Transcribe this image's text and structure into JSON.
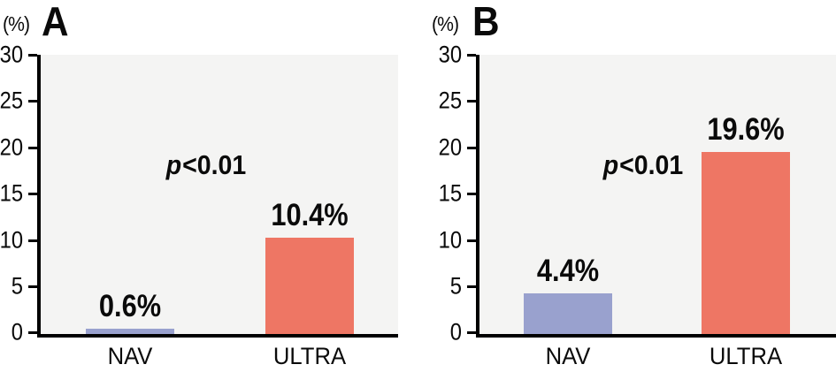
{
  "colors": {
    "nav_bar": "#99a1ce",
    "ultra_bar": "#ee7664",
    "plot_bg": "#f4f4f3",
    "axis": "#000000",
    "text": "#0a0a0a"
  },
  "chart_data": [
    {
      "type": "bar",
      "panel_label": "A",
      "y_axis_unit": "(%)",
      "categories": [
        "NAV",
        "ULTRA"
      ],
      "values": [
        0.6,
        10.4
      ],
      "value_labels": [
        "0.6%",
        "10.4%"
      ],
      "annotation": "p<0.01",
      "annotation_italic": "p",
      "annotation_rest": "<0.01",
      "ylim": [
        0,
        30
      ],
      "ytick_labels": [
        "30",
        "25",
        "20",
        "15",
        "10",
        "5",
        "0"
      ],
      "grid": false,
      "legend": "none",
      "bar_colors": [
        "#99a1ce",
        "#ee7664"
      ]
    },
    {
      "type": "bar",
      "panel_label": "B",
      "y_axis_unit": "(%)",
      "categories": [
        "NAV",
        "ULTRA"
      ],
      "values": [
        4.4,
        19.6
      ],
      "value_labels": [
        "4.4%",
        "19.6%"
      ],
      "annotation": "p<0.01",
      "annotation_italic": "p",
      "annotation_rest": "<0.01",
      "ylim": [
        0,
        30
      ],
      "ytick_labels": [
        "30",
        "25",
        "20",
        "15",
        "10",
        "5",
        "0"
      ],
      "grid": false,
      "legend": "none",
      "bar_colors": [
        "#99a1ce",
        "#ee7664"
      ]
    }
  ]
}
